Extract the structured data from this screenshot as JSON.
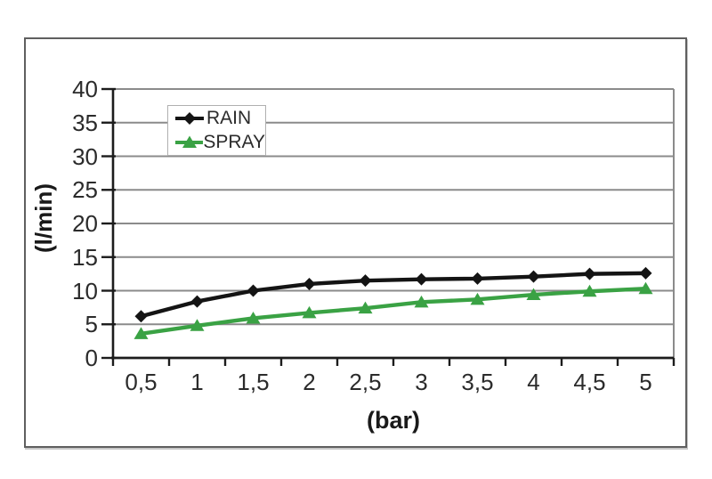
{
  "figure": {
    "background": "#ffffff",
    "frame_border_color": "#5f5f5f"
  },
  "chart_data": {
    "type": "line",
    "title": "",
    "xlabel": "(bar)",
    "ylabel": "(l/min)",
    "x": [
      0.5,
      1,
      1.5,
      2,
      2.5,
      3,
      3.5,
      4,
      4.5,
      5
    ],
    "x_tick_labels": [
      "0,5",
      "1",
      "1,5",
      "2",
      "2,5",
      "3",
      "3,5",
      "4",
      "4,5",
      "5"
    ],
    "ylim": [
      0,
      40
    ],
    "ytick_step": 5,
    "grid": true,
    "legend_position": "upper-left-inside",
    "series": [
      {
        "name": "RAIN",
        "color": "#141414",
        "marker": "diamond",
        "values": [
          6.2,
          8.4,
          10.0,
          11.0,
          11.5,
          11.7,
          11.8,
          12.1,
          12.5,
          12.6
        ]
      },
      {
        "name": "SPRAY",
        "color": "#3aa244",
        "marker": "triangle",
        "values": [
          3.6,
          4.8,
          5.9,
          6.7,
          7.4,
          8.3,
          8.7,
          9.4,
          9.9,
          10.3
        ]
      }
    ],
    "colors": {
      "grid": "#8b8b8b",
      "axis": "#1c1c1c",
      "tick_label": "#2b2b2b"
    }
  }
}
